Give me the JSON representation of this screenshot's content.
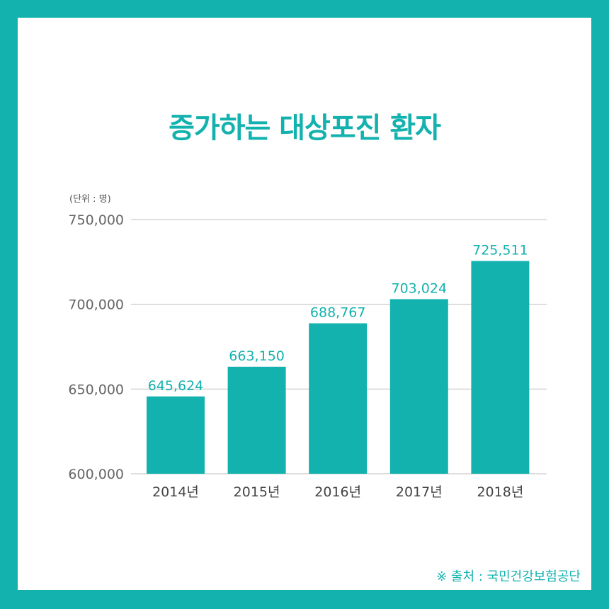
{
  "title": "증가하는 대상포진 환자",
  "unit_label": "(단위 : 명)",
  "source": "※ 출처 : 국민건강보험공단",
  "colors": {
    "accent": "#13b2ae",
    "bar": "#13b2ae",
    "grid": "#bdbdbd",
    "tick": "#666666"
  },
  "chart_data": {
    "type": "bar",
    "categories": [
      "2014년",
      "2015년",
      "2016년",
      "2017년",
      "2018년"
    ],
    "values": [
      645624,
      663150,
      688767,
      703024,
      725511
    ],
    "value_labels": [
      "645,624",
      "663,150",
      "688,767",
      "703,024",
      "725,511"
    ],
    "ylim": [
      600000,
      750000
    ],
    "yticks": [
      600000,
      650000,
      700000,
      750000
    ],
    "ytick_labels": [
      "600,000",
      "650,000",
      "700,000",
      "750,000"
    ],
    "grid": true,
    "legend": "none"
  }
}
